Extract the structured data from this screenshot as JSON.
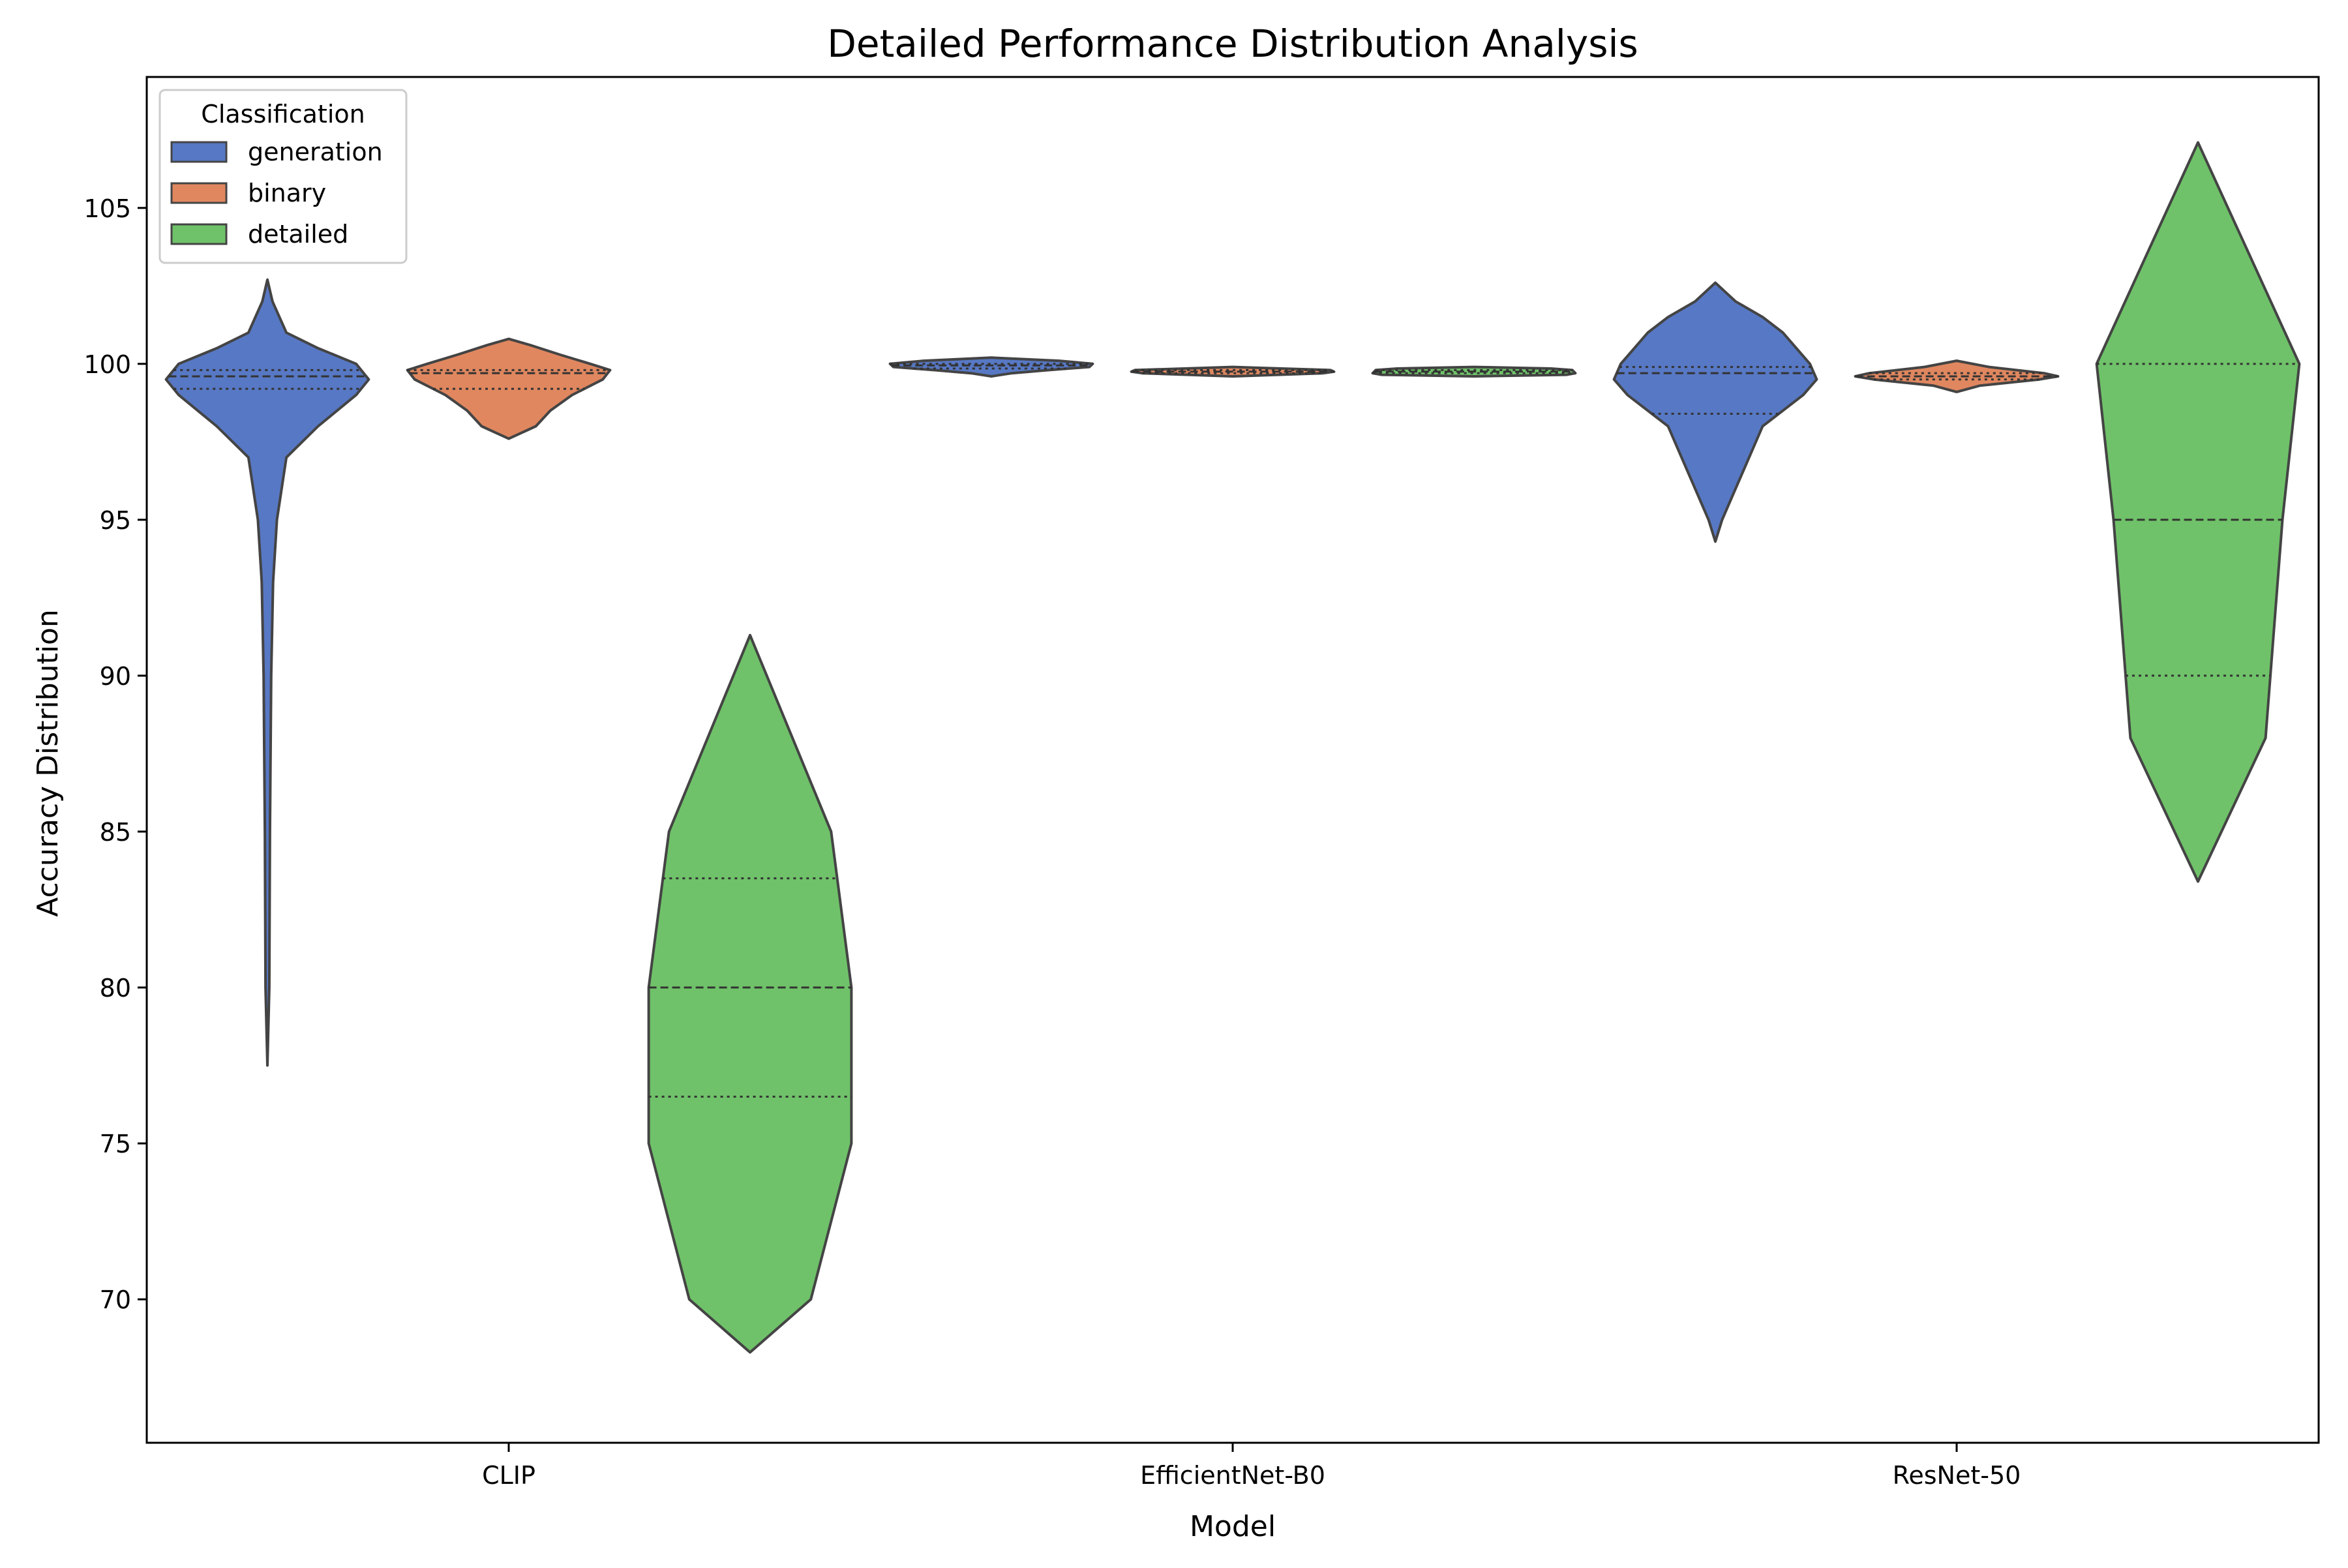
{
  "chart_data": {
    "type": "violin",
    "title": "Detailed Performance Distribution Analysis",
    "xlabel": "Model",
    "ylabel": "Accuracy Distribution",
    "categories": [
      "CLIP",
      "EfficientNet-B0",
      "ResNet-50"
    ],
    "ylim": [
      65.4,
      109.2
    ],
    "yticks": [
      70,
      75,
      80,
      85,
      90,
      95,
      100,
      105
    ],
    "grid": false,
    "legend": {
      "title": "Classification",
      "placement": "upper left",
      "entries": [
        {
          "name": "generation",
          "color": "#5778c4"
        },
        {
          "name": "binary",
          "color": "#e0875f"
        },
        {
          "name": "detailed",
          "color": "#6fc269"
        }
      ]
    },
    "series": [
      {
        "name": "generation",
        "color": "#5778c4",
        "violins": [
          {
            "category": "CLIP",
            "min": 77.5,
            "max": 102.7,
            "quartiles": [
              99.2,
              99.6,
              99.8
            ],
            "density": [
              [
                77.5,
                0
              ],
              [
                80,
                0.3
              ],
              [
                85,
                0.4
              ],
              [
                90,
                0.6
              ],
              [
                93,
                0.9
              ],
              [
                95,
                1.5
              ],
              [
                97,
                3
              ],
              [
                98,
                8
              ],
              [
                99,
                14
              ],
              [
                99.5,
                16
              ],
              [
                100,
                14
              ],
              [
                100.5,
                8
              ],
              [
                101,
                3
              ],
              [
                102,
                0.8
              ],
              [
                102.7,
                0
              ]
            ]
          },
          {
            "category": "EfficientNet-B0",
            "min": 99.6,
            "max": 100.2,
            "quartiles": [
              99.85,
              99.95,
              100.0
            ],
            "density": [
              [
                99.6,
                0
              ],
              [
                99.7,
                60
              ],
              [
                99.8,
                170
              ],
              [
                99.9,
                290
              ],
              [
                100.0,
                300
              ],
              [
                100.1,
                200
              ],
              [
                100.2,
                0
              ]
            ]
          },
          {
            "category": "ResNet-50",
            "min": 94.3,
            "max": 102.6,
            "quartiles": [
              98.4,
              99.7,
              99.9
            ],
            "density": [
              [
                94.3,
                0
              ],
              [
                95,
                1
              ],
              [
                96,
                3
              ],
              [
                97,
                5
              ],
              [
                98,
                7
              ],
              [
                99,
                13
              ],
              [
                99.5,
                15
              ],
              [
                100,
                14
              ],
              [
                100.5,
                12
              ],
              [
                101,
                10
              ],
              [
                101.5,
                7
              ],
              [
                102,
                3
              ],
              [
                102.6,
                0
              ]
            ]
          }
        ]
      },
      {
        "name": "binary",
        "color": "#e0875f",
        "violins": [
          {
            "category": "CLIP",
            "min": 97.6,
            "max": 100.8,
            "quartiles": [
              99.2,
              99.7,
              99.8
            ],
            "density": [
              [
                97.6,
                0
              ],
              [
                98.0,
                15
              ],
              [
                98.5,
                23
              ],
              [
                99.0,
                35
              ],
              [
                99.5,
                52
              ],
              [
                99.8,
                56
              ],
              [
                100.0,
                45
              ],
              [
                100.3,
                28
              ],
              [
                100.6,
                12
              ],
              [
                100.8,
                0
              ]
            ]
          },
          {
            "category": "EfficientNet-B0",
            "min": 99.6,
            "max": 99.9,
            "quartiles": [
              99.7,
              99.75,
              99.8
            ],
            "density": [
              [
                99.6,
                0
              ],
              [
                99.7,
                250
              ],
              [
                99.75,
                280
              ],
              [
                99.8,
                270
              ],
              [
                99.9,
                0
              ]
            ]
          },
          {
            "category": "ResNet-50",
            "min": 99.1,
            "max": 100.1,
            "quartiles": [
              99.5,
              99.6,
              99.7
            ],
            "density": [
              [
                99.1,
                0
              ],
              [
                99.3,
                25
              ],
              [
                99.5,
                90
              ],
              [
                99.6,
                110
              ],
              [
                99.7,
                95
              ],
              [
                99.9,
                35
              ],
              [
                100.1,
                0
              ]
            ]
          }
        ]
      },
      {
        "name": "detailed",
        "color": "#6fc269",
        "violins": [
          {
            "category": "CLIP",
            "min": 68.3,
            "max": 91.3,
            "quartiles": [
              76.5,
              80.0,
              83.5
            ],
            "density": [
              [
                68.3,
                0
              ],
              [
                70,
                0.3
              ],
              [
                75,
                0.5
              ],
              [
                80,
                0.5
              ],
              [
                85,
                0.4
              ],
              [
                91.3,
                0
              ]
            ]
          },
          {
            "category": "EfficientNet-B0",
            "min": 99.6,
            "max": 99.9,
            "quartiles": [
              99.7,
              99.75,
              99.8
            ],
            "density": [
              [
                99.6,
                0
              ],
              [
                99.65,
                300
              ],
              [
                99.7,
                330
              ],
              [
                99.8,
                320
              ],
              [
                99.85,
                250
              ],
              [
                99.9,
                0
              ]
            ]
          },
          {
            "category": "ResNet-50",
            "min": 83.4,
            "max": 107.1,
            "quartiles": [
              90.0,
              95.0,
              100.0
            ],
            "density": [
              [
                83.4,
                0
              ],
              [
                88,
                0.4
              ],
              [
                95,
                0.5
              ],
              [
                100,
                0.6
              ],
              [
                107.1,
                0
              ]
            ]
          }
        ]
      }
    ]
  }
}
